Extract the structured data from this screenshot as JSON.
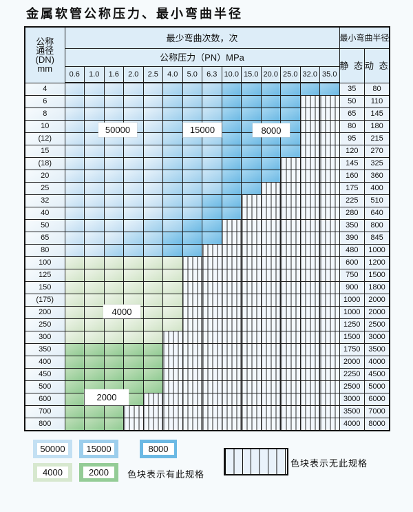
{
  "page": {
    "title": "金属软管公称压力、最小弯曲半径"
  },
  "colors": {
    "c50000": "#c3e0f3",
    "c15000": "#9cceec",
    "c8000": "#6cb9e4",
    "c4000": "#d7e8cf",
    "c2000": "#94cc96",
    "hatch_bg": "#f3f8fd",
    "grid": "#1f1f1f"
  },
  "table": {
    "header": {
      "dn_lines": "公称\n通径\n(DN)\nmm",
      "cycles": "最少弯曲次数，次",
      "radius": "最小弯曲半径",
      "pressure": "公称压力（PN）MPa",
      "static_label": "静 态",
      "dynamic_label": "动 态",
      "pressures": [
        "0.6",
        "1.0",
        "1.6",
        "2.0",
        "2.5",
        "4.0",
        "5.0",
        "6.3",
        "10.0",
        "15.0",
        "20.0",
        "25.0",
        "32.0",
        "35.0"
      ]
    },
    "rows": [
      {
        "dn": "4",
        "static": "35",
        "dynamic": "80",
        "cells": [
          "c50",
          "c50",
          "c50",
          "c50",
          "c50",
          "c15",
          "c15",
          "c15",
          "c8",
          "c8",
          "c8",
          "c8",
          "c8",
          "c8"
        ]
      },
      {
        "dn": "6",
        "static": "50",
        "dynamic": "110",
        "cells": [
          "c50",
          "c50",
          "c50",
          "c50",
          "c50",
          "c15",
          "c15",
          "c15",
          "c8",
          "c8",
          "c8",
          "c8",
          "x",
          "x"
        ]
      },
      {
        "dn": "8",
        "static": "65",
        "dynamic": "145",
        "cells": [
          "c50",
          "c50",
          "c50",
          "c50",
          "c50",
          "c15",
          "c15",
          "c15",
          "c8",
          "c8",
          "c8",
          "c8",
          "x",
          "x"
        ]
      },
      {
        "dn": "10",
        "static": "80",
        "dynamic": "180",
        "cells": [
          "c50",
          "c50",
          "c50",
          "c50",
          "c50",
          "c15",
          "c15",
          "c15",
          "c8",
          "c8",
          "c8",
          "c8",
          "x",
          "x"
        ]
      },
      {
        "dn": "(12)",
        "static": "95",
        "dynamic": "215",
        "cells": [
          "c50",
          "c50",
          "c50",
          "c50",
          "c50",
          "c15",
          "c15",
          "c15",
          "c8",
          "c8",
          "c8",
          "c8",
          "x",
          "x"
        ]
      },
      {
        "dn": "15",
        "static": "120",
        "dynamic": "270",
        "cells": [
          "c50",
          "c50",
          "c50",
          "c50",
          "c50",
          "c15",
          "c15",
          "c15",
          "c8",
          "c8",
          "c8",
          "c8",
          "x",
          "x"
        ]
      },
      {
        "dn": "(18)",
        "static": "145",
        "dynamic": "325",
        "cells": [
          "c50",
          "c50",
          "c50",
          "c50",
          "c50",
          "c15",
          "c15",
          "c15",
          "c8",
          "c8",
          "c8",
          "x",
          "x",
          "x"
        ]
      },
      {
        "dn": "20",
        "static": "160",
        "dynamic": "360",
        "cells": [
          "c50",
          "c50",
          "c50",
          "c50",
          "c50",
          "c15",
          "c15",
          "c15",
          "c8",
          "c8",
          "c8",
          "x",
          "x",
          "x"
        ]
      },
      {
        "dn": "25",
        "static": "175",
        "dynamic": "400",
        "cells": [
          "c50",
          "c50",
          "c50",
          "c50",
          "c50",
          "c15",
          "c15",
          "c15",
          "c8",
          "c8",
          "x",
          "x",
          "x",
          "x"
        ]
      },
      {
        "dn": "32",
        "static": "225",
        "dynamic": "510",
        "cells": [
          "c50",
          "c50",
          "c50",
          "c50",
          "c50",
          "c15",
          "c15",
          "c8",
          "c8",
          "x",
          "x",
          "x",
          "x",
          "x"
        ]
      },
      {
        "dn": "40",
        "static": "280",
        "dynamic": "640",
        "cells": [
          "c50",
          "c50",
          "c50",
          "c50",
          "c50",
          "c15",
          "c15",
          "c8",
          "c8",
          "x",
          "x",
          "x",
          "x",
          "x"
        ]
      },
      {
        "dn": "50",
        "static": "350",
        "dynamic": "800",
        "cells": [
          "c50",
          "c50",
          "c50",
          "c50",
          "c15",
          "c15",
          "c8",
          "c8",
          "x",
          "x",
          "x",
          "x",
          "x",
          "x"
        ]
      },
      {
        "dn": "65",
        "static": "390",
        "dynamic": "845",
        "cells": [
          "c50",
          "c50",
          "c50",
          "c15",
          "c15",
          "c8",
          "c8",
          "c8",
          "x",
          "x",
          "x",
          "x",
          "x",
          "x"
        ]
      },
      {
        "dn": "80",
        "static": "480",
        "dynamic": "1000",
        "cells": [
          "c50",
          "c50",
          "c15",
          "c15",
          "c15",
          "c8",
          "c8",
          "x",
          "x",
          "x",
          "x",
          "x",
          "x",
          "x"
        ]
      },
      {
        "dn": "100",
        "static": "600",
        "dynamic": "1200",
        "cells": [
          "c4",
          "c4",
          "c4",
          "c4",
          "c4",
          "c4",
          "x",
          "x",
          "x",
          "x",
          "x",
          "x",
          "x",
          "x"
        ]
      },
      {
        "dn": "125",
        "static": "750",
        "dynamic": "1500",
        "cells": [
          "c4",
          "c4",
          "c4",
          "c4",
          "c4",
          "c4",
          "x",
          "x",
          "x",
          "x",
          "x",
          "x",
          "x",
          "x"
        ]
      },
      {
        "dn": "150",
        "static": "900",
        "dynamic": "1800",
        "cells": [
          "c4",
          "c4",
          "c4",
          "c4",
          "c4",
          "c4",
          "x",
          "x",
          "x",
          "x",
          "x",
          "x",
          "x",
          "x"
        ]
      },
      {
        "dn": "(175)",
        "static": "1000",
        "dynamic": "2000",
        "cells": [
          "c4",
          "c4",
          "c4",
          "c4",
          "c4",
          "c4",
          "x",
          "x",
          "x",
          "x",
          "x",
          "x",
          "x",
          "x"
        ]
      },
      {
        "dn": "200",
        "static": "1000",
        "dynamic": "2000",
        "cells": [
          "c4",
          "c4",
          "c4",
          "c4",
          "c4",
          "c4",
          "x",
          "x",
          "x",
          "x",
          "x",
          "x",
          "x",
          "x"
        ]
      },
      {
        "dn": "250",
        "static": "1250",
        "dynamic": "2500",
        "cells": [
          "c4",
          "c4",
          "c4",
          "c4",
          "c4",
          "c4",
          "x",
          "x",
          "x",
          "x",
          "x",
          "x",
          "x",
          "x"
        ]
      },
      {
        "dn": "300",
        "static": "1500",
        "dynamic": "3000",
        "cells": [
          "c4",
          "c4",
          "c4",
          "c4",
          "c4",
          "x",
          "x",
          "x",
          "x",
          "x",
          "x",
          "x",
          "x",
          "x"
        ]
      },
      {
        "dn": "350",
        "static": "1750",
        "dynamic": "3500",
        "cells": [
          "c2",
          "c2",
          "c2",
          "c2",
          "c2",
          "x",
          "x",
          "x",
          "x",
          "x",
          "x",
          "x",
          "x",
          "x"
        ]
      },
      {
        "dn": "400",
        "static": "2000",
        "dynamic": "4000",
        "cells": [
          "c2",
          "c2",
          "c2",
          "c2",
          "c2",
          "x",
          "x",
          "x",
          "x",
          "x",
          "x",
          "x",
          "x",
          "x"
        ]
      },
      {
        "dn": "450",
        "static": "2250",
        "dynamic": "4500",
        "cells": [
          "c2",
          "c2",
          "c2",
          "c2",
          "c2",
          "x",
          "x",
          "x",
          "x",
          "x",
          "x",
          "x",
          "x",
          "x"
        ]
      },
      {
        "dn": "500",
        "static": "2500",
        "dynamic": "5000",
        "cells": [
          "c2",
          "c2",
          "c2",
          "c2",
          "c2",
          "x",
          "x",
          "x",
          "x",
          "x",
          "x",
          "x",
          "x",
          "x"
        ]
      },
      {
        "dn": "600",
        "static": "3000",
        "dynamic": "6000",
        "cells": [
          "c2",
          "c2",
          "c2",
          "c2",
          "x",
          "x",
          "x",
          "x",
          "x",
          "x",
          "x",
          "x",
          "x",
          "x"
        ]
      },
      {
        "dn": "700",
        "static": "3500",
        "dynamic": "7000",
        "cells": [
          "c2",
          "c2",
          "c2",
          "x",
          "x",
          "x",
          "x",
          "x",
          "x",
          "x",
          "x",
          "x",
          "x",
          "x"
        ]
      },
      {
        "dn": "800",
        "static": "4000",
        "dynamic": "8000",
        "cells": [
          "c2",
          "c2",
          "c2",
          "x",
          "x",
          "x",
          "x",
          "x",
          "x",
          "x",
          "x",
          "x",
          "x",
          "x"
        ]
      }
    ]
  },
  "overlay_labels": {
    "l50000": "50000",
    "l15000": "15000",
    "l8000": "8000",
    "l4000": "4000",
    "l2000": "2000"
  },
  "legend": {
    "items": [
      {
        "label": "50000",
        "color": "#c3e0f3"
      },
      {
        "label": "15000",
        "color": "#9cceec"
      },
      {
        "label": "8000",
        "color": "#6cb9e4"
      },
      {
        "label": "4000",
        "color": "#d7e8cf"
      },
      {
        "label": "2000",
        "color": "#94cc96"
      }
    ],
    "has_text": "色块表示有此规格",
    "none_text": "色块表示无此规格"
  }
}
